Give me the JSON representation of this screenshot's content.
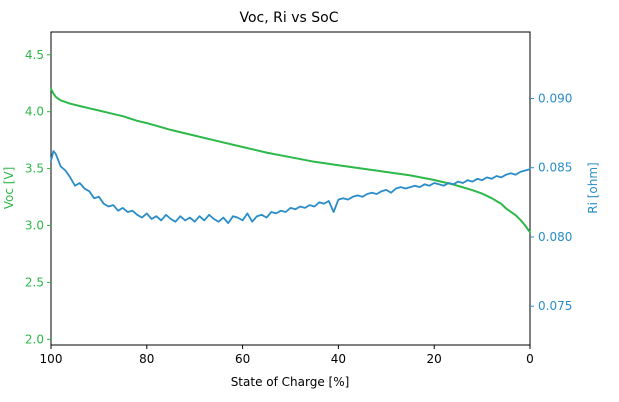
{
  "chart_data": {
    "type": "line",
    "title": "Voc, Ri vs SoC",
    "xlabel": "State of Charge [%]",
    "xlim": [
      100,
      0
    ],
    "xticks": [
      100,
      80,
      60,
      40,
      20,
      0
    ],
    "grid": false,
    "legend": "none",
    "y_left": {
      "label": "Voc [V]",
      "color": "#2db84a",
      "lim": [
        1.95,
        4.7
      ],
      "ticks": [
        "2.0",
        "2.5",
        "3.0",
        "3.5",
        "4.0",
        "4.5"
      ]
    },
    "y_right": {
      "label": "Ri [ohm]",
      "color": "#2a8dc8",
      "lim": [
        0.0722,
        0.0948
      ],
      "ticks": [
        "0.075",
        "0.080",
        "0.085",
        "0.090"
      ]
    },
    "series": [
      {
        "axis": "left",
        "color": "#2db84a",
        "x": [
          100,
          99.5,
          99,
          98,
          96,
          94,
          92,
          90,
          88,
          85,
          82,
          80,
          75,
          70,
          65,
          60,
          55,
          50,
          45,
          40,
          35,
          30,
          25,
          20,
          16,
          12,
          10,
          8,
          6,
          5,
          4,
          3,
          2,
          1,
          0.5,
          0
        ],
        "y": [
          4.2,
          4.16,
          4.13,
          4.1,
          4.07,
          4.05,
          4.03,
          4.01,
          3.99,
          3.96,
          3.92,
          3.9,
          3.84,
          3.79,
          3.74,
          3.69,
          3.64,
          3.6,
          3.56,
          3.53,
          3.5,
          3.47,
          3.44,
          3.4,
          3.36,
          3.31,
          3.28,
          3.24,
          3.19,
          3.15,
          3.12,
          3.09,
          3.05,
          3.0,
          2.97,
          2.94
        ]
      },
      {
        "axis": "right",
        "color": "#2a8dc8",
        "x": [
          100,
          99.5,
          99,
          98,
          97,
          96,
          95,
          94,
          93,
          92,
          91,
          90,
          89,
          88,
          87,
          86,
          85,
          84,
          83,
          82,
          81,
          80,
          79,
          78,
          77,
          76,
          75,
          74,
          73,
          72,
          71,
          70,
          69,
          68,
          67,
          66,
          65,
          64,
          63,
          62,
          61,
          60,
          59,
          58,
          57,
          56,
          55,
          54,
          53,
          52,
          51,
          50,
          49,
          48,
          47,
          46,
          45,
          44,
          43,
          42,
          41,
          40,
          39,
          38,
          37,
          36,
          35,
          34,
          33,
          32,
          31,
          30,
          29,
          28,
          27,
          26,
          25,
          24,
          23,
          22,
          21,
          20,
          19,
          18,
          17,
          16,
          15,
          14,
          13,
          12,
          11,
          10,
          9,
          8,
          7,
          6,
          5,
          4,
          3,
          2,
          1,
          0
        ],
        "y": [
          0.0855,
          0.0862,
          0.086,
          0.0851,
          0.0848,
          0.0843,
          0.0837,
          0.0839,
          0.0835,
          0.0833,
          0.0828,
          0.0829,
          0.0824,
          0.0822,
          0.0823,
          0.0819,
          0.0821,
          0.0818,
          0.0819,
          0.0816,
          0.0814,
          0.0817,
          0.0813,
          0.0815,
          0.0812,
          0.0816,
          0.0813,
          0.0811,
          0.0815,
          0.0812,
          0.0814,
          0.0811,
          0.0815,
          0.0812,
          0.0816,
          0.0813,
          0.0811,
          0.0814,
          0.081,
          0.0815,
          0.0814,
          0.0812,
          0.0817,
          0.0811,
          0.0815,
          0.0816,
          0.0814,
          0.0818,
          0.0817,
          0.0819,
          0.0818,
          0.0821,
          0.082,
          0.0822,
          0.0821,
          0.0823,
          0.0822,
          0.0825,
          0.0824,
          0.0826,
          0.0818,
          0.0827,
          0.0828,
          0.0827,
          0.0829,
          0.083,
          0.0829,
          0.0831,
          0.0832,
          0.0831,
          0.0833,
          0.0834,
          0.0832,
          0.0835,
          0.0836,
          0.0835,
          0.0836,
          0.0837,
          0.0836,
          0.0838,
          0.0837,
          0.0839,
          0.0838,
          0.0837,
          0.0839,
          0.0838,
          0.084,
          0.0839,
          0.0841,
          0.084,
          0.0842,
          0.0841,
          0.0843,
          0.0842,
          0.0844,
          0.0843,
          0.0845,
          0.0846,
          0.0845,
          0.0847,
          0.0848,
          0.0849
        ]
      }
    ]
  }
}
